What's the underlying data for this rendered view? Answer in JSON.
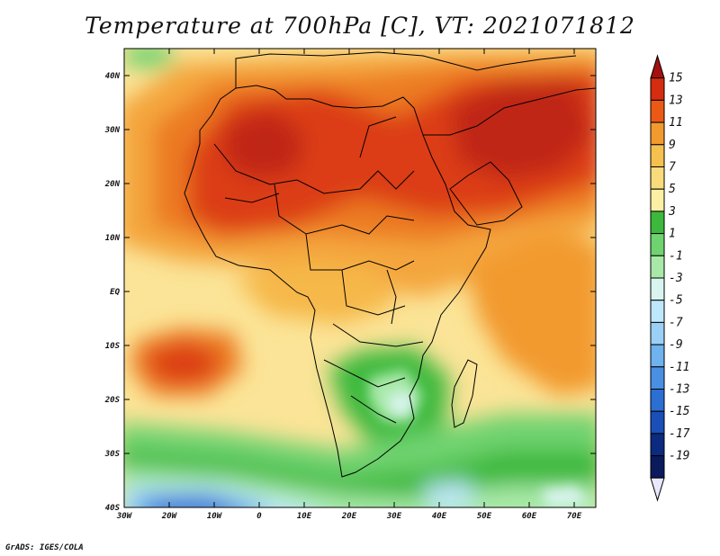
{
  "title": "Temperature at 700hPa [C], VT: 2021071812",
  "credit": "GrADS: IGES/COLA",
  "map": {
    "lon_labels": [
      "30W",
      "20W",
      "10W",
      "0",
      "10E",
      "20E",
      "30E",
      "40E",
      "50E",
      "60E",
      "70E"
    ],
    "lat_labels": [
      "40N",
      "30N",
      "20N",
      "10N",
      "EQ",
      "10S",
      "20S",
      "30S",
      "40S"
    ]
  },
  "colorbar": {
    "labels": [
      "15",
      "13",
      "11",
      "9",
      "7",
      "5",
      "3",
      "1",
      "-1",
      "-3",
      "-5",
      "-7",
      "-9",
      "-11",
      "-13",
      "-15",
      "-17",
      "-19"
    ],
    "colors": [
      "#a50f0f",
      "#d62c10",
      "#ea5a14",
      "#f29a2e",
      "#f6c04e",
      "#fadb7c",
      "#fbf0a4",
      "#3cb93c",
      "#6fd36f",
      "#a8e9a8",
      "#d8f4ee",
      "#bfe7fb",
      "#9ad0f6",
      "#6fb2ee",
      "#4a90e2",
      "#2b6fd3",
      "#1a4fb8",
      "#0c2b80",
      "#0a1a5c",
      "#e8e8ff"
    ]
  },
  "chart_data": {
    "type": "heatmap",
    "title": "Temperature at 700hPa [C], VT: 2021071812",
    "x_range": [
      "30W",
      "75E"
    ],
    "y_range": [
      "40S",
      "45N"
    ],
    "legend_placement": "right"
  }
}
